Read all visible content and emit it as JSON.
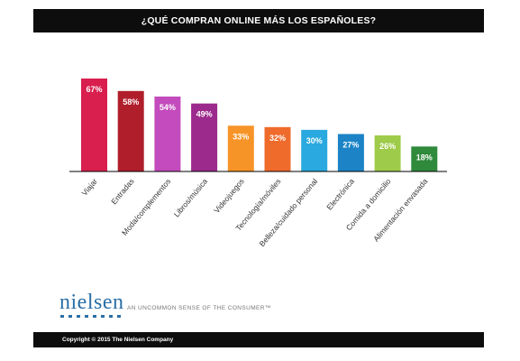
{
  "title": "¿QUÉ COMPRAN ONLINE MÁS LOS ESPAÑOLES?",
  "brand": {
    "logo": "nielsen",
    "tagline": "AN UNCOMMON SENSE OF THE CONSUMER™",
    "color": "#2a6fa6"
  },
  "footer": "Copyright © 2015 The Nielsen Company",
  "chart_data": {
    "type": "bar",
    "categories": [
      "Viajar",
      "Entradas",
      "Moda/complementos",
      "Libros/música",
      "Videojuegos",
      "Tecnología/móviles",
      "Belleza/cuidado personal",
      "Electrónica",
      "Comida a domicilio",
      "Alimentación envasada"
    ],
    "values": [
      67,
      58,
      54,
      49,
      33,
      32,
      30,
      27,
      26,
      18
    ],
    "value_labels": [
      "67%",
      "58%",
      "54%",
      "49%",
      "33%",
      "32%",
      "30%",
      "27%",
      "26%",
      "18%"
    ],
    "colors": [
      "#d81f4e",
      "#b01e2c",
      "#c34bbd",
      "#9c2a8c",
      "#f79428",
      "#ef6b2c",
      "#29a9df",
      "#1c84c6",
      "#9ecb4a",
      "#2f8a3c"
    ],
    "ylim": [
      0,
      70
    ],
    "grid": false,
    "legend": "none"
  }
}
